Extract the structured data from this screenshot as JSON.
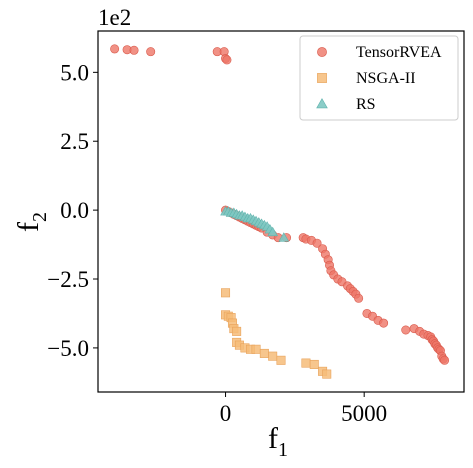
{
  "chart_data": {
    "type": "scatter",
    "title": "",
    "xlabel": "f",
    "xlabel_subscript": "1",
    "ylabel": "f",
    "ylabel_subscript": "2",
    "y_offset_label": "1e2",
    "xlim": [
      -4600,
      8600
    ],
    "ylim": [
      -6.6,
      6.5
    ],
    "xticks": [
      0,
      5000
    ],
    "xtick_labels": [
      "0",
      "5000"
    ],
    "yticks": [
      -5.0,
      -2.5,
      0.0,
      2.5,
      5.0
    ],
    "ytick_labels": [
      "−5.0",
      "−2.5",
      "0.0",
      "2.5",
      "5.0"
    ],
    "grid": false,
    "legend_position": "top-right",
    "series": [
      {
        "name": "TensorRVEA",
        "marker": "circle",
        "color": "#ee7566",
        "points": [
          [
            -4000,
            5.85
          ],
          [
            -3550,
            5.82
          ],
          [
            -3300,
            5.8
          ],
          [
            -2700,
            5.75
          ],
          [
            -300,
            5.75
          ],
          [
            -50,
            5.75
          ],
          [
            0,
            5.5
          ],
          [
            50,
            5.45
          ],
          [
            0,
            0.0
          ],
          [
            100,
            -0.05
          ],
          [
            200,
            -0.1
          ],
          [
            300,
            -0.15
          ],
          [
            400,
            -0.2
          ],
          [
            500,
            -0.25
          ],
          [
            600,
            -0.3
          ],
          [
            700,
            -0.35
          ],
          [
            800,
            -0.4
          ],
          [
            900,
            -0.45
          ],
          [
            1000,
            -0.5
          ],
          [
            1100,
            -0.55
          ],
          [
            1200,
            -0.6
          ],
          [
            1300,
            -0.65
          ],
          [
            1500,
            -0.8
          ],
          [
            1700,
            -0.9
          ],
          [
            1900,
            -1.0
          ],
          [
            2200,
            -1.0
          ],
          [
            2800,
            -1.0
          ],
          [
            2900,
            -1.05
          ],
          [
            3100,
            -1.1
          ],
          [
            3300,
            -1.2
          ],
          [
            3500,
            -1.4
          ],
          [
            3600,
            -1.6
          ],
          [
            3700,
            -1.8
          ],
          [
            3750,
            -2.0
          ],
          [
            3800,
            -2.2
          ],
          [
            3900,
            -2.35
          ],
          [
            4050,
            -2.5
          ],
          [
            4200,
            -2.6
          ],
          [
            4400,
            -2.75
          ],
          [
            4500,
            -2.85
          ],
          [
            4600,
            -2.95
          ],
          [
            4700,
            -3.05
          ],
          [
            4800,
            -3.2
          ],
          [
            5100,
            -3.75
          ],
          [
            5300,
            -3.85
          ],
          [
            5500,
            -4.0
          ],
          [
            5700,
            -4.1
          ],
          [
            6500,
            -4.35
          ],
          [
            6800,
            -4.3
          ],
          [
            7000,
            -4.4
          ],
          [
            7150,
            -4.5
          ],
          [
            7300,
            -4.55
          ],
          [
            7400,
            -4.6
          ],
          [
            7450,
            -4.7
          ],
          [
            7500,
            -4.75
          ],
          [
            7550,
            -4.85
          ],
          [
            7600,
            -4.9
          ],
          [
            7650,
            -5.0
          ],
          [
            7700,
            -5.05
          ],
          [
            7750,
            -5.1
          ],
          [
            7800,
            -5.3
          ],
          [
            7850,
            -5.4
          ],
          [
            7900,
            -5.45
          ]
        ]
      },
      {
        "name": "NSGA-II",
        "marker": "square",
        "color": "#f6bc79",
        "points": [
          [
            0,
            -3.0
          ],
          [
            0,
            -3.8
          ],
          [
            100,
            -3.85
          ],
          [
            200,
            -3.9
          ],
          [
            250,
            -4.1
          ],
          [
            300,
            -4.3
          ],
          [
            400,
            -4.4
          ],
          [
            400,
            -4.8
          ],
          [
            500,
            -4.9
          ],
          [
            700,
            -5.0
          ],
          [
            900,
            -5.05
          ],
          [
            1100,
            -5.05
          ],
          [
            1400,
            -5.2
          ],
          [
            1700,
            -5.3
          ],
          [
            2000,
            -5.45
          ],
          [
            2900,
            -5.55
          ],
          [
            3200,
            -5.6
          ],
          [
            3500,
            -5.85
          ],
          [
            3650,
            -5.95
          ]
        ]
      },
      {
        "name": "RS",
        "marker": "triangle",
        "color": "#7ec8c2",
        "points": [
          [
            0,
            -0.05
          ],
          [
            100,
            -0.05
          ],
          [
            200,
            -0.1
          ],
          [
            300,
            -0.1
          ],
          [
            400,
            -0.15
          ],
          [
            500,
            -0.2
          ],
          [
            600,
            -0.2
          ],
          [
            700,
            -0.25
          ],
          [
            800,
            -0.3
          ],
          [
            900,
            -0.3
          ],
          [
            1000,
            -0.35
          ],
          [
            1100,
            -0.4
          ],
          [
            1200,
            -0.45
          ],
          [
            1300,
            -0.5
          ],
          [
            1400,
            -0.55
          ],
          [
            1500,
            -0.6
          ],
          [
            1600,
            -0.7
          ],
          [
            1700,
            -0.8
          ],
          [
            2100,
            -1.0
          ]
        ]
      }
    ]
  }
}
